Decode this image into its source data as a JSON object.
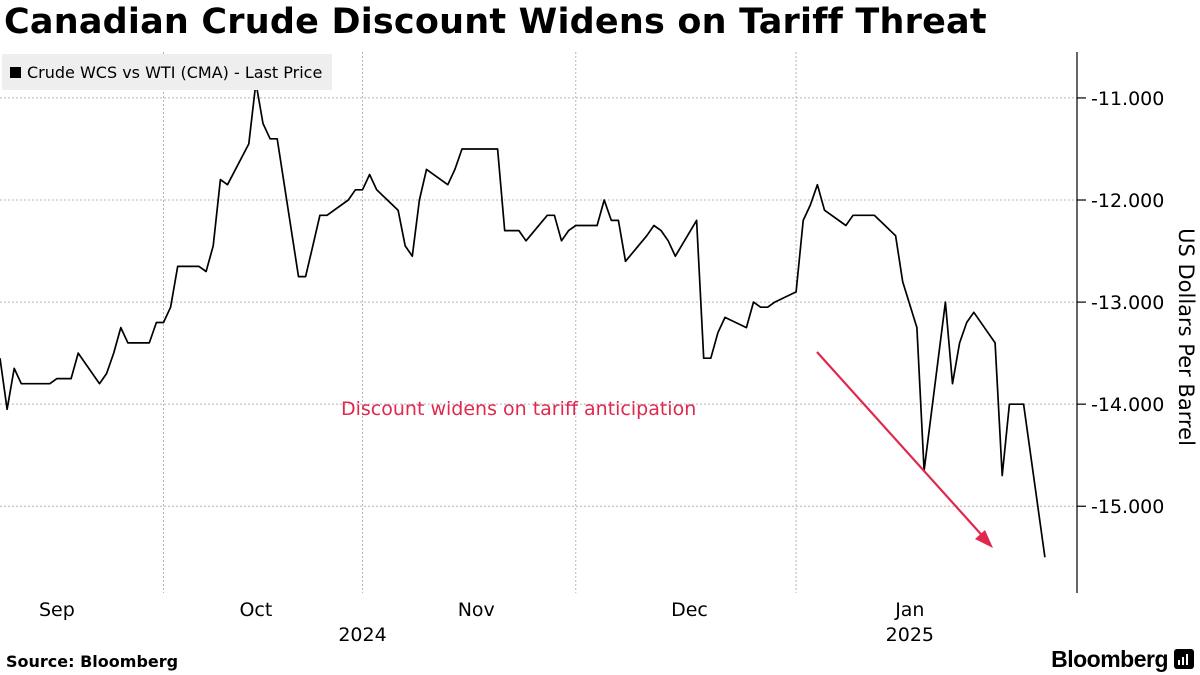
{
  "title": "Canadian Crude Discount Widens on Tariff Threat",
  "legend": {
    "label": "Crude WCS vs WTI (CMA) - Last Price"
  },
  "annotation": {
    "text": "Discount widens on tariff anticipation",
    "color": "#e0284e"
  },
  "source": "Source: Bloomberg",
  "brand": "Bloomberg",
  "chart_data": {
    "type": "line",
    "title": "Canadian Crude Discount Widens on Tariff Threat",
    "ylabel": "US Dollars Per Barrel",
    "ylim": [
      -15.85,
      -10.55
    ],
    "yticks": [
      -11,
      -12,
      -13,
      -14,
      -15
    ],
    "ytick_labels": [
      "-11.000",
      "-12.000",
      "-13.000",
      "-14.000",
      "-15.000"
    ],
    "xlim": [
      "2024-08-26",
      "2025-01-21"
    ],
    "x_ticks": [
      {
        "label": "Sep",
        "date": "2024-09-03"
      },
      {
        "label": "Oct",
        "date": "2024-10-01"
      },
      {
        "label": "Nov",
        "date": "2024-11-01"
      },
      {
        "label": "Dec",
        "date": "2024-12-01"
      },
      {
        "label": "Jan",
        "date": "2025-01-01"
      }
    ],
    "x_gridlines": [
      "2024-09-18",
      "2024-10-16",
      "2024-11-15",
      "2024-12-16"
    ],
    "year_labels": [
      {
        "label": "2024",
        "date": "2024-10-16"
      },
      {
        "label": "2025",
        "date": "2025-01-01"
      }
    ],
    "grid": true,
    "legend_position": "top-left",
    "series": [
      {
        "name": "Crude WCS vs WTI (CMA) - Last Price",
        "color": "#000000",
        "x": [
          "2024-08-26",
          "2024-08-27",
          "2024-08-28",
          "2024-08-29",
          "2024-08-30",
          "2024-09-02",
          "2024-09-03",
          "2024-09-04",
          "2024-09-05",
          "2024-09-06",
          "2024-09-09",
          "2024-09-10",
          "2024-09-11",
          "2024-09-12",
          "2024-09-13",
          "2024-09-16",
          "2024-09-17",
          "2024-09-18",
          "2024-09-19",
          "2024-09-20",
          "2024-09-23",
          "2024-09-24",
          "2024-09-25",
          "2024-09-26",
          "2024-09-27",
          "2024-09-30",
          "2024-10-01",
          "2024-10-02",
          "2024-10-03",
          "2024-10-04",
          "2024-10-07",
          "2024-10-08",
          "2024-10-09",
          "2024-10-10",
          "2024-10-11",
          "2024-10-14",
          "2024-10-15",
          "2024-10-16",
          "2024-10-17",
          "2024-10-18",
          "2024-10-21",
          "2024-10-22",
          "2024-10-23",
          "2024-10-24",
          "2024-10-25",
          "2024-10-28",
          "2024-10-29",
          "2024-10-30",
          "2024-10-31",
          "2024-11-01",
          "2024-11-04",
          "2024-11-05",
          "2024-11-06",
          "2024-11-07",
          "2024-11-08",
          "2024-11-11",
          "2024-11-12",
          "2024-11-13",
          "2024-11-14",
          "2024-11-15",
          "2024-11-18",
          "2024-11-19",
          "2024-11-20",
          "2024-11-21",
          "2024-11-22",
          "2024-11-25",
          "2024-11-26",
          "2024-11-27",
          "2024-11-28",
          "2024-11-29",
          "2024-12-02",
          "2024-12-03",
          "2024-12-04",
          "2024-12-05",
          "2024-12-06",
          "2024-12-09",
          "2024-12-10",
          "2024-12-11",
          "2024-12-12",
          "2024-12-13",
          "2024-12-16",
          "2024-12-17",
          "2024-12-18",
          "2024-12-19",
          "2024-12-20",
          "2024-12-23",
          "2024-12-24",
          "2024-12-26",
          "2024-12-27",
          "2024-12-30",
          "2024-12-31",
          "2025-01-02",
          "2025-01-03",
          "2025-01-06",
          "2025-01-07",
          "2025-01-08",
          "2025-01-09",
          "2025-01-10",
          "2025-01-13",
          "2025-01-14",
          "2025-01-15",
          "2025-01-16",
          "2025-01-17",
          "2025-01-20"
        ],
        "values": [
          -13.55,
          -14.05,
          -13.65,
          -13.8,
          -13.8,
          -13.8,
          -13.75,
          -13.75,
          -13.75,
          -13.5,
          -13.8,
          -13.7,
          -13.5,
          -13.25,
          -13.4,
          -13.4,
          -13.2,
          -13.2,
          -13.05,
          -12.65,
          -12.65,
          -12.7,
          -12.45,
          -11.8,
          -11.85,
          -11.45,
          -10.85,
          -11.25,
          -11.4,
          -11.4,
          -12.75,
          -12.75,
          -12.45,
          -12.15,
          -12.15,
          -12.0,
          -11.9,
          -11.9,
          -11.75,
          -11.9,
          -12.1,
          -12.45,
          -12.55,
          -12.0,
          -11.7,
          -11.85,
          -11.7,
          -11.5,
          -11.5,
          -11.5,
          -11.5,
          -12.3,
          -12.3,
          -12.3,
          -12.4,
          -12.15,
          -12.15,
          -12.4,
          -12.3,
          -12.25,
          -12.25,
          -12.0,
          -12.2,
          -12.2,
          -12.6,
          -12.35,
          -12.25,
          -12.3,
          -12.4,
          -12.55,
          -12.2,
          -13.55,
          -13.55,
          -13.3,
          -13.15,
          -13.25,
          -13.0,
          -13.05,
          -13.05,
          -13.0,
          -12.9,
          -12.2,
          -12.05,
          -11.85,
          -12.1,
          -12.25,
          -12.15,
          -12.15,
          -12.15,
          -12.35,
          -12.8,
          -13.25,
          -14.65,
          -13.0,
          -13.8,
          -13.4,
          -13.2,
          -13.1,
          -13.4,
          -14.7,
          -14.0,
          -14.0,
          -14.0,
          -15.5
        ]
      }
    ]
  }
}
